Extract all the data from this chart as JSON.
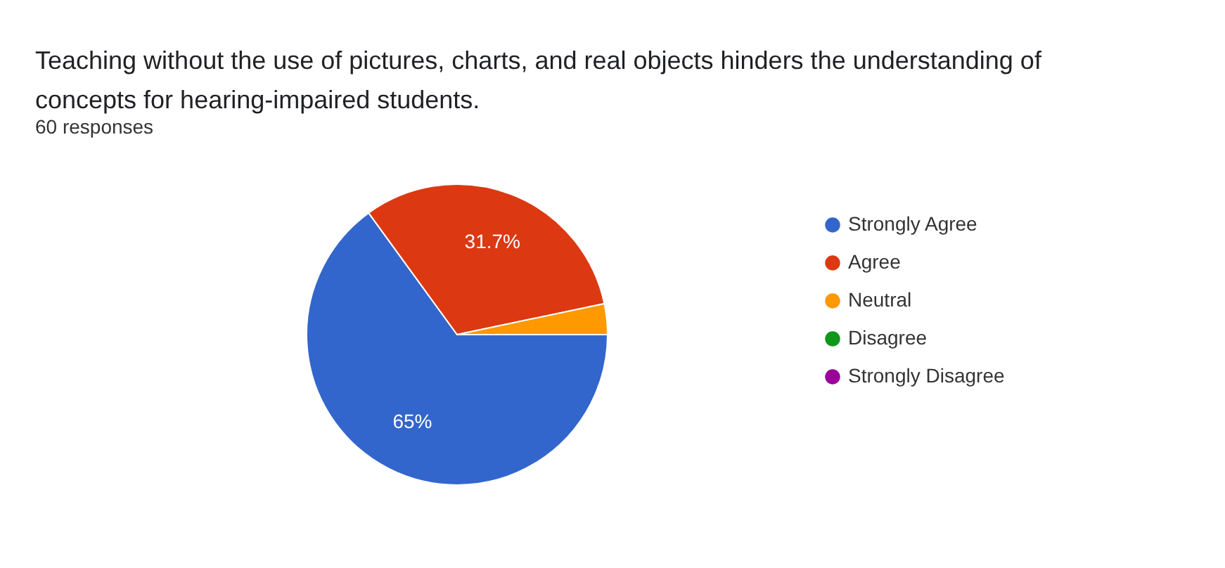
{
  "chart_data": {
    "type": "pie",
    "title": "Teaching without the use of pictures, charts, and real objects hinders the understanding of concepts for hearing-impaired students.",
    "subtitle": "60 responses",
    "categories": [
      "Strongly Agree",
      "Agree",
      "Neutral",
      "Disagree",
      "Strongly Disagree"
    ],
    "values": [
      65,
      31.7,
      3.3,
      0,
      0
    ],
    "colors": [
      "#3366cc",
      "#dc3912",
      "#ff9900",
      "#109618",
      "#990099"
    ],
    "value_labels": [
      "65%",
      "31.7%",
      null,
      null,
      null
    ],
    "legend": "right"
  }
}
